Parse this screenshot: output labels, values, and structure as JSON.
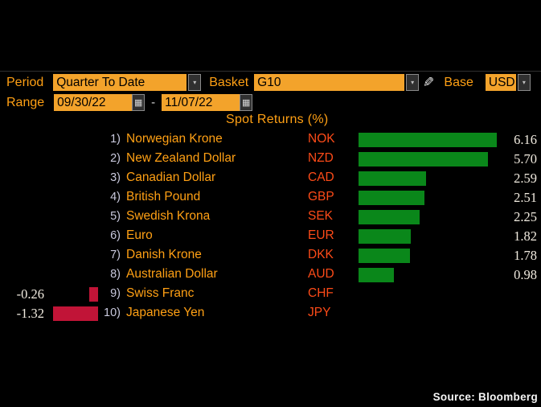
{
  "controls": {
    "period_label": "Period",
    "period_value": "Quarter To Date",
    "basket_label": "Basket",
    "basket_value": "G10",
    "base_label": "Base",
    "base_value": "USD",
    "range_label": "Range",
    "range_start": "09/30/22",
    "range_separator": "-",
    "range_end": "11/07/22"
  },
  "icons": {
    "chevron_down": "▾",
    "calendar": "▦",
    "pencil": "✎"
  },
  "chart_data": {
    "type": "bar",
    "orientation": "horizontal",
    "title": "Spot Returns (%)",
    "unit": "%",
    "positive_color": "#0a871a",
    "negative_color": "#c11437",
    "rank_color": "#c9c9dd",
    "name_color": "#ffa014",
    "code_color": "#fd4b18",
    "accent_amber": "#f3a32b",
    "xlim": [
      -1.5,
      6.5
    ],
    "rows": [
      {
        "rank": "1)",
        "name": "Norwegian Krone",
        "code": "NOK",
        "value": 6.16
      },
      {
        "rank": "2)",
        "name": "New Zealand Dollar",
        "code": "NZD",
        "value": 5.7
      },
      {
        "rank": "3)",
        "name": "Canadian Dollar",
        "code": "CAD",
        "value": 2.59
      },
      {
        "rank": "4)",
        "name": "British Pound",
        "code": "GBP",
        "value": 2.51
      },
      {
        "rank": "5)",
        "name": "Swedish Krona",
        "code": "SEK",
        "value": 2.25
      },
      {
        "rank": "6)",
        "name": "Euro",
        "code": "EUR",
        "value": 1.82
      },
      {
        "rank": "7)",
        "name": "Danish Krone",
        "code": "DKK",
        "value": 1.78
      },
      {
        "rank": "8)",
        "name": "Australian Dollar",
        "code": "AUD",
        "value": 0.98
      },
      {
        "rank": "9)",
        "name": "Swiss Franc",
        "code": "CHF",
        "value": -0.26
      },
      {
        "rank": "10)",
        "name": "Japanese Yen",
        "code": "JPY",
        "value": -1.32
      }
    ]
  },
  "footer": {
    "source": "Source:  Bloomberg"
  }
}
